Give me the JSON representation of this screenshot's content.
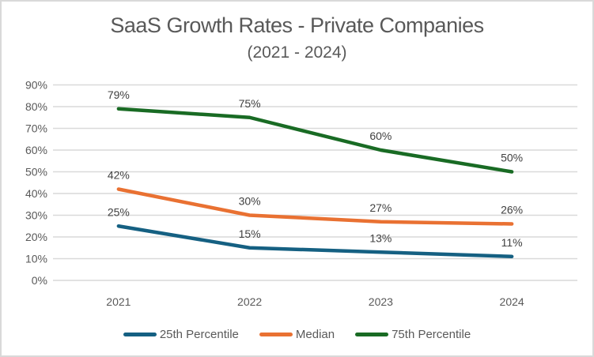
{
  "frame": {
    "background": "#ffffff",
    "border_color": "#d9d9d9"
  },
  "chart_data": {
    "type": "line",
    "title": "SaaS Growth Rates - Private Companies",
    "subtitle": "(2021 - 2024)",
    "categories": [
      "2021",
      "2022",
      "2023",
      "2024"
    ],
    "series": [
      {
        "name": "25th Percentile",
        "color": "#156082",
        "values": [
          25,
          15,
          13,
          11
        ],
        "labels": [
          "25%",
          "15%",
          "13%",
          "11%"
        ]
      },
      {
        "name": "Median",
        "color": "#E97132",
        "values": [
          42,
          30,
          27,
          26
        ],
        "labels": [
          "42%",
          "30%",
          "27%",
          "26%"
        ]
      },
      {
        "name": "75th Percentile",
        "color": "#196B24",
        "values": [
          79,
          75,
          60,
          50
        ],
        "labels": [
          "79%",
          "75%",
          "60%",
          "50%"
        ]
      }
    ],
    "y_axis": {
      "min": 0,
      "max": 90,
      "step": 10,
      "tick_labels": [
        "0%",
        "10%",
        "20%",
        "30%",
        "40%",
        "50%",
        "60%",
        "70%",
        "80%",
        "90%"
      ]
    },
    "grid": true,
    "legend_position": "bottom",
    "colors": {
      "title_text": "#595959",
      "axis_text": "#595959",
      "data_label_text": "#404040",
      "gridline": "#d9d9d9"
    }
  }
}
